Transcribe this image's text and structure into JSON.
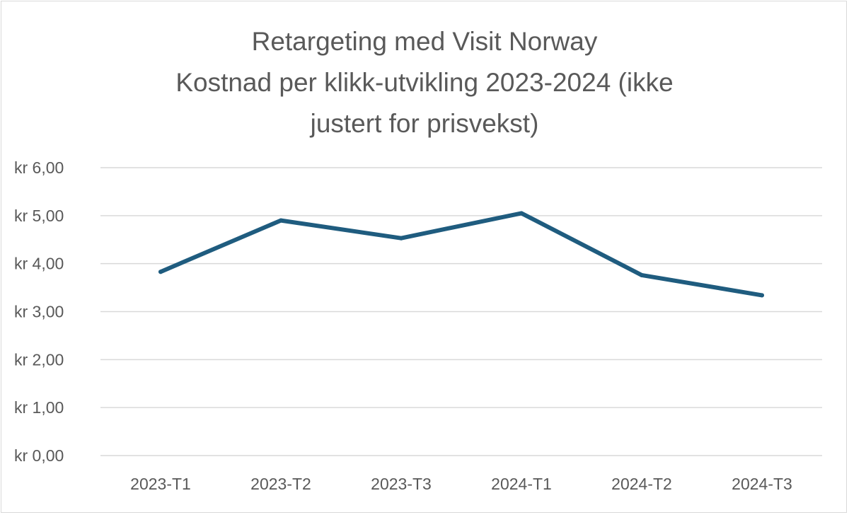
{
  "chart_data": {
    "type": "line",
    "title_lines": [
      "Retargeting med Visit Norway",
      "Kostnad per klikk-utvikling 2023-2024 (ikke",
      "justert for prisvekst)"
    ],
    "categories": [
      "2023-T1",
      "2023-T2",
      "2023-T3",
      "2024-T1",
      "2024-T2",
      "2024-T3"
    ],
    "series": [
      {
        "values": [
          3.83,
          4.9,
          4.53,
          5.05,
          3.76,
          3.34
        ],
        "color": "#1f5c7f"
      }
    ],
    "ylim": [
      0,
      6
    ],
    "y_ticks": [
      {
        "value": 6,
        "label": "kr 6,00"
      },
      {
        "value": 5,
        "label": "kr 5,00"
      },
      {
        "value": 4,
        "label": "kr 4,00"
      },
      {
        "value": 3,
        "label": "kr 3,00"
      },
      {
        "value": 2,
        "label": "kr 2,00"
      },
      {
        "value": 1,
        "label": "kr 1,00"
      },
      {
        "value": 0,
        "label": "kr 0,00"
      }
    ],
    "grid": true,
    "gridline_color": "#d9d9d9",
    "legend": "none"
  }
}
